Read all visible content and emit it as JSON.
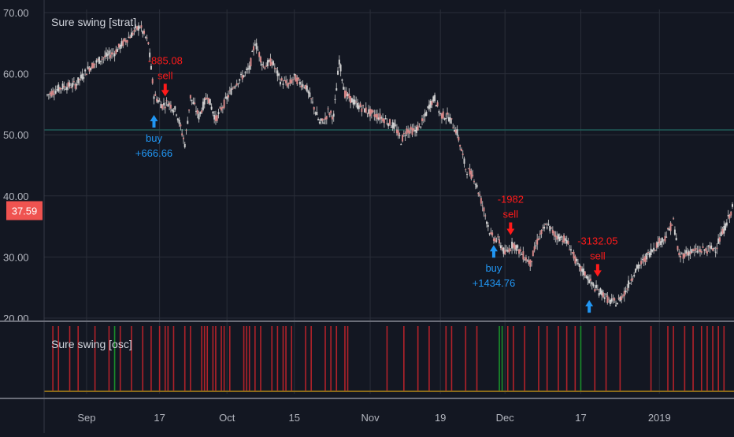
{
  "chart_data": {
    "type": "candlestick",
    "main_pane": {
      "title": "Sure swing [strat]",
      "y_ticks": [
        "70.00",
        "60.00",
        "50.00",
        "40.00",
        "30.00",
        "20.00"
      ],
      "ylim": [
        20,
        70
      ],
      "horizontal_line": 50.8,
      "last_price": "37.59",
      "last_price_value": 37.59,
      "price_path": [
        [
          0,
          56.5
        ],
        [
          5,
          57.8
        ],
        [
          10,
          58.2
        ],
        [
          15,
          61.0
        ],
        [
          19,
          62.4
        ],
        [
          24,
          63.5
        ],
        [
          28,
          65.5
        ],
        [
          33,
          67.8
        ],
        [
          36,
          65.0
        ],
        [
          38,
          56.5
        ],
        [
          41,
          54.8
        ],
        [
          43,
          55.3
        ],
        [
          46,
          53.8
        ],
        [
          49,
          48.5
        ],
        [
          51,
          56.2
        ],
        [
          54,
          53.0
        ],
        [
          57,
          56.5
        ],
        [
          60,
          52.5
        ],
        [
          64,
          56.0
        ],
        [
          67,
          58.4
        ],
        [
          70,
          59.8
        ],
        [
          72,
          60.8
        ],
        [
          74,
          65.2
        ],
        [
          77,
          61.2
        ],
        [
          80,
          62.0
        ],
        [
          83,
          58.9
        ],
        [
          86,
          58.2
        ],
        [
          88,
          59.4
        ],
        [
          90,
          58.5
        ],
        [
          92,
          58.0
        ],
        [
          95,
          54.5
        ],
        [
          97,
          51.9
        ],
        [
          99,
          52.5
        ],
        [
          100,
          53.8
        ],
        [
          102,
          53.0
        ],
        [
          104,
          62.2
        ],
        [
          106,
          56.7
        ],
        [
          110,
          55.0
        ],
        [
          115,
          53.6
        ],
        [
          120,
          52.6
        ],
        [
          124,
          51.2
        ],
        [
          126,
          49.0
        ],
        [
          128,
          50.8
        ],
        [
          131,
          50.6
        ],
        [
          134,
          52.3
        ],
        [
          136,
          54.8
        ],
        [
          138,
          56.0
        ],
        [
          140,
          53.3
        ],
        [
          143,
          52.9
        ],
        [
          146,
          50.3
        ],
        [
          149,
          44.5
        ],
        [
          152,
          43.0
        ],
        [
          155,
          38.5
        ],
        [
          158,
          33.5
        ],
        [
          161,
          32.5
        ],
        [
          163,
          30.5
        ],
        [
          166,
          32.2
        ],
        [
          169,
          30.5
        ],
        [
          172,
          29.0
        ],
        [
          175,
          33.2
        ],
        [
          178,
          35.3
        ],
        [
          181,
          33.5
        ],
        [
          184,
          33.0
        ],
        [
          186,
          31.8
        ],
        [
          189,
          28.5
        ],
        [
          192,
          27.0
        ],
        [
          194,
          25.5
        ],
        [
          196,
          24.5
        ],
        [
          198,
          24.0
        ],
        [
          200,
          22.8
        ],
        [
          203,
          22.5
        ],
        [
          206,
          24.5
        ],
        [
          209,
          27.5
        ],
        [
          212,
          29.2
        ],
        [
          215,
          31.0
        ],
        [
          218,
          32.5
        ],
        [
          220,
          33.2
        ],
        [
          223,
          35.8
        ],
        [
          225,
          30.0
        ],
        [
          228,
          30.8
        ],
        [
          232,
          31.0
        ],
        [
          235,
          31.2
        ],
        [
          238,
          31.5
        ],
        [
          241,
          34.5
        ],
        [
          244,
          38.0
        ]
      ],
      "trades": [
        {
          "kind": "buy",
          "day": 38,
          "price": 54.8,
          "label1": "buy",
          "label2": "+666.66"
        },
        {
          "kind": "sell",
          "day": 42,
          "price": 55.0,
          "label1": "-885.08",
          "label2": "sell"
        },
        {
          "kind": "buy",
          "day": 159,
          "price": 33.5,
          "label1": "buy",
          "label2": "+1434.76"
        },
        {
          "kind": "sell",
          "day": 165,
          "price": 32.3,
          "label1": "-1982",
          "label2": "sell"
        },
        {
          "kind": "buy",
          "day": 193,
          "price": 24.5,
          "label1": "",
          "label2": ""
        },
        {
          "kind": "sell",
          "day": 196,
          "price": 25.5,
          "label1": "-3132.05",
          "label2": "sell"
        }
      ]
    },
    "oscillator_pane": {
      "title": "Sure swing [osc]",
      "red_bars": [
        2,
        4,
        8,
        11,
        17,
        22,
        26,
        30,
        34,
        37,
        40,
        42,
        43,
        45,
        49,
        51,
        55,
        56,
        57,
        59,
        60,
        62,
        63,
        65,
        70,
        71,
        72,
        74,
        76,
        80,
        82,
        84,
        85,
        87,
        92,
        94,
        99,
        101,
        103,
        106,
        107,
        121,
        127,
        132,
        136,
        142,
        144,
        149,
        153,
        164,
        166,
        170,
        175,
        178,
        182,
        185,
        188,
        195,
        199,
        204,
        215,
        221,
        223,
        227,
        230,
        233,
        235,
        237,
        239,
        241
      ],
      "green_bars": [
        24,
        161,
        162,
        190
      ]
    },
    "x_ticks": [
      {
        "label": "Sep",
        "day": 14
      },
      {
        "label": "17",
        "day": 40
      },
      {
        "label": "Oct",
        "day": 64
      },
      {
        "label": "15",
        "day": 88
      },
      {
        "label": "Nov",
        "day": 115
      },
      {
        "label": "19",
        "day": 140
      },
      {
        "label": "Dec",
        "day": 163
      },
      {
        "label": "17",
        "day": 190
      },
      {
        "label": "2019",
        "day": 218
      }
    ],
    "x_range": [
      0,
      244
    ],
    "colors": {
      "background": "#131722",
      "grid": "#2a2e39",
      "axis_text": "#b2b5be",
      "candle": "#c8c8c8",
      "buy": "#2196f3",
      "sell": "#ff1a1a",
      "osc_red": "#b2222a",
      "osc_green": "#1a8f2a",
      "price_badge": "#ef5350",
      "hline": "#1f5c57",
      "osc_baseline": "#8a6b1a"
    }
  }
}
